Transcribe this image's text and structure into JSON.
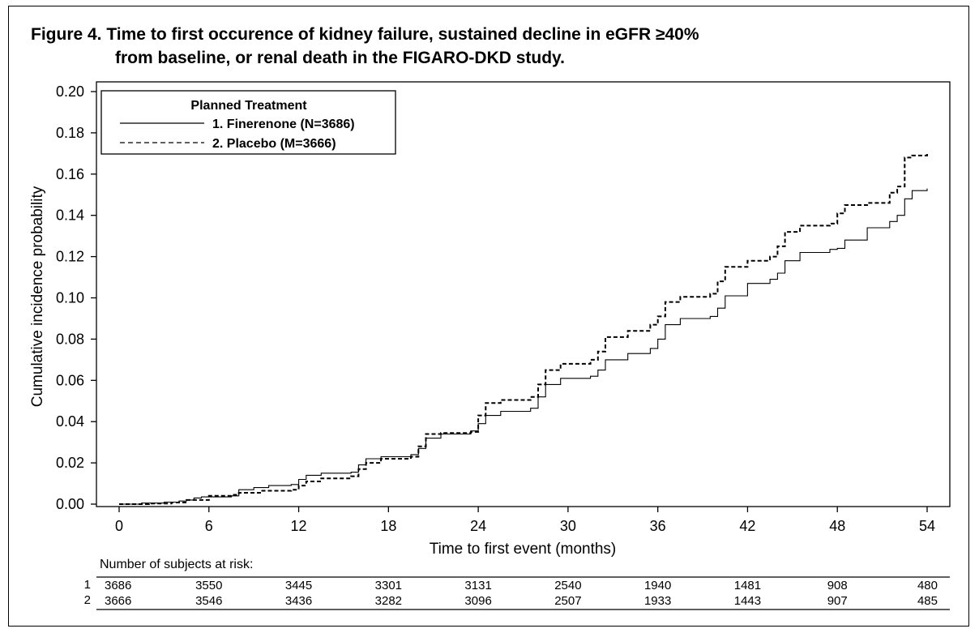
{
  "figure": {
    "title_line1": "Figure 4. Time to first occurence of kidney failure, sustained decline in eGFR ≥40%",
    "title_line2": "from baseline, or renal death in the FIGARO-DKD study."
  },
  "chart_data": {
    "type": "line",
    "xlabel": "Time to first event (months)",
    "ylabel": "Cumulative incidence probability",
    "xlim": [
      0,
      54
    ],
    "ylim": [
      0,
      0.2
    ],
    "xticks": [
      0,
      6,
      12,
      18,
      24,
      30,
      36,
      42,
      48,
      54
    ],
    "yticks": [
      "0.00",
      "0.02",
      "0.04",
      "0.06",
      "0.08",
      "0.10",
      "0.12",
      "0.14",
      "0.16",
      "0.18",
      "0.20"
    ],
    "legend": {
      "title": "Planned Treatment",
      "position": "top-left",
      "entries": [
        "1. Finerenone (N=3686)",
        "2. Placebo (M=3666)"
      ]
    },
    "series": [
      {
        "name": "1. Finerenone (N=3686)",
        "style": "solid",
        "color": "#000000",
        "x": [
          0,
          1.5,
          3,
          4,
          4.5,
          5,
          5.5,
          7.5,
          8,
          9,
          10,
          11.5,
          12,
          12.5,
          13.5,
          15.5,
          16,
          16.5,
          17.5,
          19.5,
          20,
          20.5,
          21.5,
          23.5,
          24,
          24.5,
          25.5,
          27.5,
          28,
          28.5,
          29.5,
          31.5,
          32,
          32.5,
          34,
          35.5,
          36,
          36.5,
          37.5,
          39.5,
          40,
          40.5,
          42,
          43.5,
          44,
          44.5,
          45.5,
          47.5,
          48,
          48.5,
          50,
          51.5,
          52,
          52.5,
          53,
          54
        ],
        "y": [
          0,
          0.0005,
          0.001,
          0.0015,
          0.002,
          0.003,
          0.0035,
          0.004,
          0.007,
          0.008,
          0.009,
          0.0095,
          0.012,
          0.014,
          0.015,
          0.0155,
          0.019,
          0.022,
          0.023,
          0.024,
          0.027,
          0.032,
          0.034,
          0.0355,
          0.039,
          0.043,
          0.045,
          0.0465,
          0.052,
          0.058,
          0.061,
          0.062,
          0.065,
          0.07,
          0.073,
          0.0755,
          0.08,
          0.087,
          0.09,
          0.091,
          0.095,
          0.101,
          0.107,
          0.109,
          0.112,
          0.118,
          0.122,
          0.1235,
          0.124,
          0.128,
          0.134,
          0.137,
          0.14,
          0.148,
          0.152,
          0.153
        ]
      },
      {
        "name": "2. Placebo (M=3666)",
        "style": "dashed",
        "color": "#000000",
        "x": [
          0,
          2,
          3.5,
          4.5,
          6,
          7.5,
          8,
          9.5,
          11.5,
          12,
          12.5,
          13.5,
          15.5,
          16,
          16.5,
          17.5,
          19.5,
          20,
          20.5,
          21.5,
          23.5,
          24,
          24.5,
          25.5,
          27.5,
          28,
          28.5,
          29.5,
          31.5,
          32,
          32.5,
          34,
          35.5,
          36,
          36.5,
          37.5,
          39.5,
          40,
          40.5,
          42,
          43.5,
          44,
          44.5,
          45.5,
          47.5,
          48,
          48.5,
          50,
          51.5,
          52,
          52.5,
          53,
          54
        ],
        "y": [
          0,
          0.0003,
          0.0008,
          0.002,
          0.004,
          0.0045,
          0.0055,
          0.0065,
          0.007,
          0.009,
          0.011,
          0.0125,
          0.0135,
          0.017,
          0.02,
          0.022,
          0.023,
          0.028,
          0.034,
          0.0345,
          0.035,
          0.043,
          0.049,
          0.0505,
          0.052,
          0.058,
          0.065,
          0.068,
          0.07,
          0.074,
          0.081,
          0.084,
          0.087,
          0.091,
          0.098,
          0.1005,
          0.102,
          0.108,
          0.115,
          0.118,
          0.12,
          0.125,
          0.132,
          0.135,
          0.136,
          0.141,
          0.145,
          0.146,
          0.151,
          0.154,
          0.168,
          0.169,
          0.17
        ]
      }
    ]
  },
  "risk_table": {
    "title": "Number of subjects at risk:",
    "rows": [
      {
        "label": "1",
        "values": [
          "3686",
          "3550",
          "3445",
          "3301",
          "3131",
          "2540",
          "1940",
          "1481",
          "908",
          "480"
        ]
      },
      {
        "label": "2",
        "values": [
          "3666",
          "3546",
          "3436",
          "3282",
          "3096",
          "2507",
          "1933",
          "1443",
          "907",
          "485"
        ]
      }
    ]
  }
}
